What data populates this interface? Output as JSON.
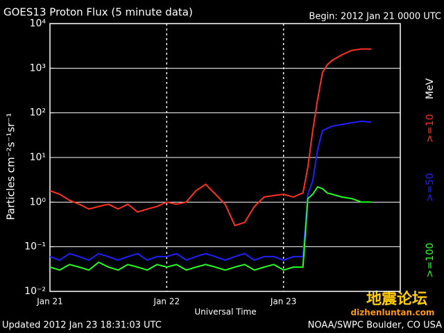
{
  "chart_data": {
    "type": "line",
    "title": "GOES13 Proton Flux (5 minute data)",
    "subtitle": "Begin: 2012 Jan 21 0000 UTC",
    "x_label": "Universal Time",
    "y_label": "Particles cm⁻²s⁻¹sr⁻¹",
    "footer_left": "Updated 2012 Jan 23 18:31:03 UTC",
    "footer_right": "NOAA/SWPC Boulder, CO USA",
    "legend_unit": "MeV",
    "watermark": [
      "地震论坛",
      "dizhenluntan.com"
    ],
    "log_y": true,
    "grid": true,
    "xlim": [
      0,
      72
    ],
    "xticks": [
      {
        "value": 0,
        "label": "Jan 21"
      },
      {
        "value": 24,
        "label": "Jan 22"
      },
      {
        "value": 48,
        "label": "Jan 23"
      }
    ],
    "ylim": [
      0.01,
      10000
    ],
    "yticks": [
      {
        "value": 0.01,
        "label": "10⁻²"
      },
      {
        "value": 0.1,
        "label": "10⁻¹"
      },
      {
        "value": 1,
        "label": "10⁰"
      },
      {
        "value": 10,
        "label": "10¹"
      },
      {
        "value": 100,
        "label": "10²"
      },
      {
        "value": 1000,
        "label": "10³"
      },
      {
        "value": 10000,
        "label": "10⁴"
      }
    ],
    "x": [
      0,
      2,
      4,
      6,
      8,
      10,
      12,
      14,
      16,
      18,
      20,
      22,
      24,
      26,
      28,
      30,
      32,
      34,
      36,
      38,
      40,
      42,
      44,
      46,
      48,
      50,
      52,
      53,
      54,
      55,
      56,
      57,
      58,
      60,
      62,
      64,
      66
    ],
    "series": [
      {
        "name": ">=10",
        "color": "#ff3020",
        "values": [
          1.8,
          1.5,
          1.1,
          0.9,
          0.7,
          0.8,
          0.9,
          0.7,
          0.9,
          0.6,
          0.7,
          0.8,
          1.0,
          0.9,
          1.0,
          1.8,
          2.5,
          1.5,
          0.9,
          0.3,
          0.35,
          0.8,
          1.3,
          1.4,
          1.5,
          1.3,
          1.6,
          6,
          40,
          200,
          800,
          1200,
          1500,
          2000,
          2500,
          2700,
          2700
        ]
      },
      {
        "name": ">=50",
        "color": "#2020ff",
        "values": [
          0.06,
          0.05,
          0.07,
          0.06,
          0.05,
          0.07,
          0.06,
          0.05,
          0.06,
          0.07,
          0.05,
          0.06,
          0.06,
          0.07,
          0.05,
          0.06,
          0.07,
          0.06,
          0.05,
          0.06,
          0.07,
          0.05,
          0.06,
          0.06,
          0.05,
          0.06,
          0.06,
          1.5,
          3,
          15,
          40,
          45,
          50,
          55,
          60,
          65,
          62
        ]
      },
      {
        "name": ">=100",
        "color": "#20ff20",
        "values": [
          0.035,
          0.03,
          0.04,
          0.035,
          0.03,
          0.045,
          0.035,
          0.03,
          0.04,
          0.035,
          0.03,
          0.04,
          0.035,
          0.04,
          0.03,
          0.035,
          0.04,
          0.035,
          0.03,
          0.035,
          0.04,
          0.03,
          0.035,
          0.04,
          0.03,
          0.035,
          0.035,
          1.2,
          1.5,
          2.2,
          2.0,
          1.6,
          1.5,
          1.3,
          1.2,
          1.0,
          1.0
        ]
      }
    ]
  }
}
